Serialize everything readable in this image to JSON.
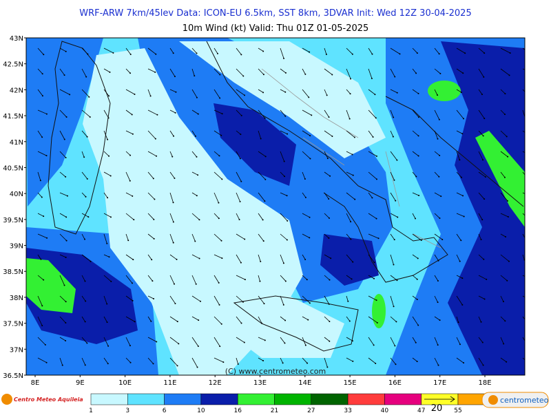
{
  "header": {
    "line1": "WRF-ARW 7km/45lev  Data: ICON-EU 6.5km, SST 8km, 3DVAR  Init: Wed 12Z 30-04-2025",
    "line2": "10m Wind (kt)  Valid: Thu 01Z 01-05-2025"
  },
  "map": {
    "lat_labels": [
      "43N",
      "42.5N",
      "42N",
      "41.5N",
      "41N",
      "40.5N",
      "40N",
      "39.5N",
      "39N",
      "38.5N",
      "38N",
      "37.5N",
      "37N",
      "36.5N"
    ],
    "lon_labels": [
      "8E",
      "9E",
      "10E",
      "11E",
      "12E",
      "13E",
      "14E",
      "15E",
      "16E",
      "17E",
      "18E"
    ],
    "credit": "(C) www.centrometeo.com"
  },
  "legend": {
    "levels": [
      1,
      3,
      6,
      10,
      16,
      21,
      27,
      33,
      40,
      47,
      55
    ],
    "colors": [
      "#c8f8ff",
      "#5fe3ff",
      "#1e7cf5",
      "#0a1eaa",
      "#33f033",
      "#00b400",
      "#006400",
      "#ff3c3c",
      "#e6007e",
      "#ffff28",
      "#ffa500"
    ],
    "arrow_reference": "20"
  },
  "logos": {
    "left": "Centro Meteo Aquileia",
    "right": "centrometeo"
  }
}
